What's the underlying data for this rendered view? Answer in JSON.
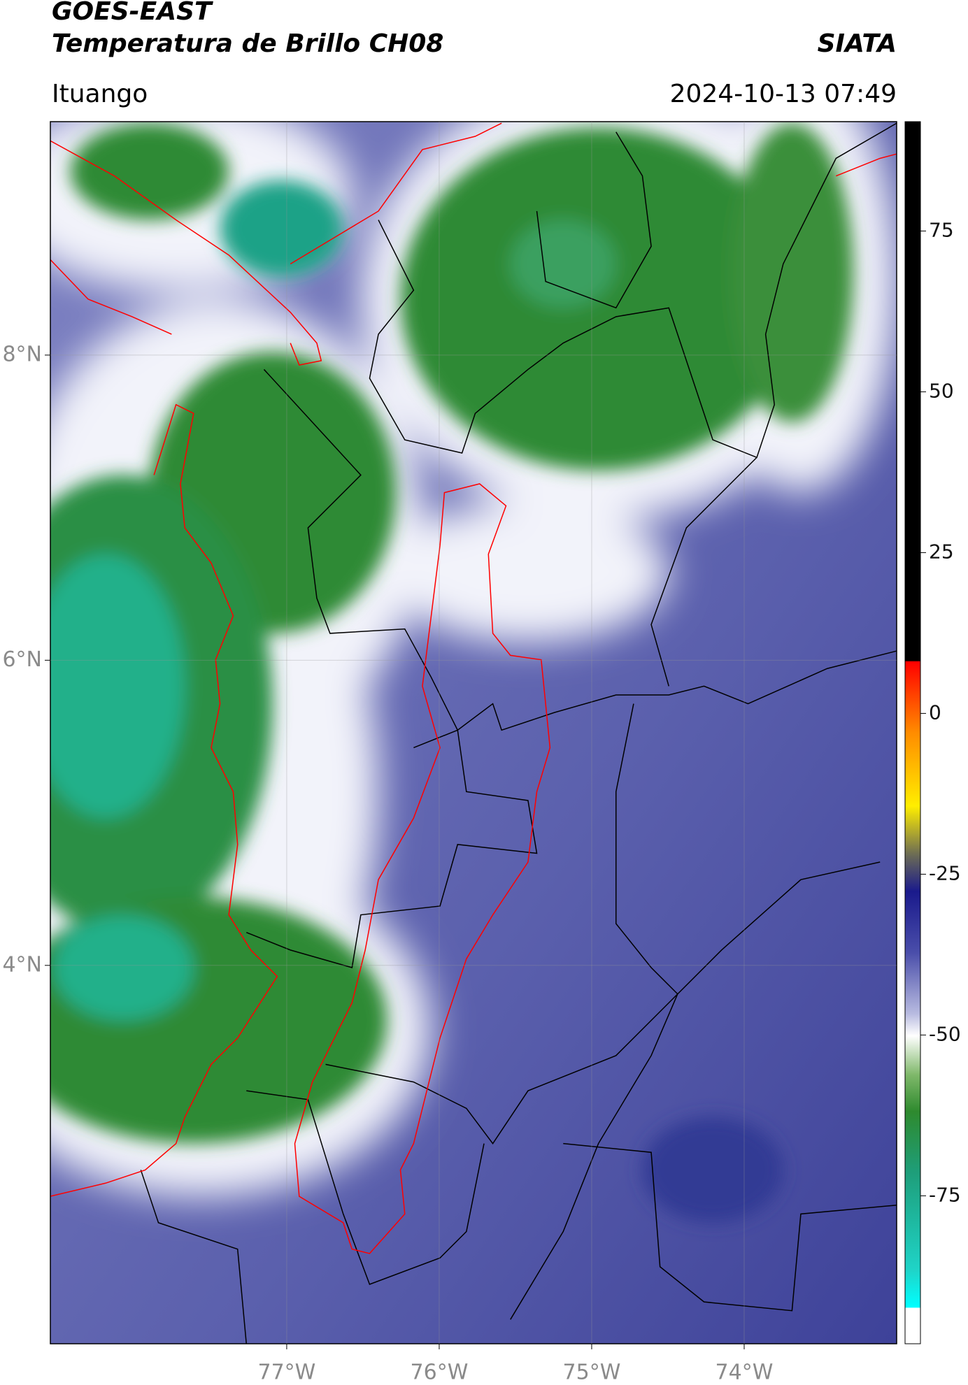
{
  "chart_data": {
    "type": "map",
    "title": "GOES-EAST",
    "subtitle": "Temperatura de Brillo CH08",
    "source": "SIATA",
    "region": "Ituango",
    "timestamp": "2024-10-13 07:49",
    "xlim": [
      -78.55,
      -73.0
    ],
    "ylim": [
      1.52,
      9.53
    ],
    "xticks": [
      {
        "value": -77,
        "label": "77°W"
      },
      {
        "value": -76,
        "label": "76°W"
      },
      {
        "value": -75,
        "label": "75°W"
      },
      {
        "value": -74,
        "label": "74°W"
      }
    ],
    "yticks": [
      {
        "value": 8,
        "label": "8°N"
      },
      {
        "value": 6,
        "label": "6°N"
      },
      {
        "value": 4,
        "label": "4°N"
      }
    ],
    "grid": true,
    "colorbar": {
      "lim": [
        -98,
        92
      ],
      "ticks": [
        75,
        50,
        25,
        0,
        -25,
        -50,
        -75
      ]
    }
  }
}
